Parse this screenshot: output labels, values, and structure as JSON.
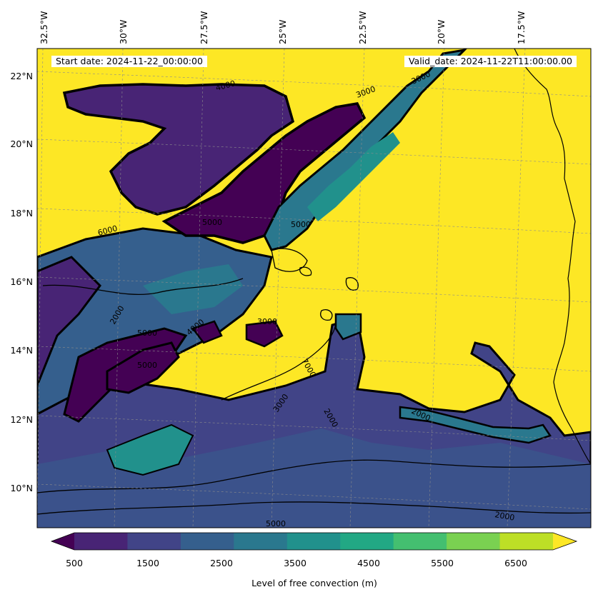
{
  "map": {
    "start_date": "Start date: 2024-11-22_00:00:00",
    "valid_date": "Valid_date: 2024-11-22T11:00:00.00",
    "lon_labels": [
      "32.5°W",
      "30°W",
      "27.5°W",
      "25°W",
      "22.5°W",
      "20°W",
      "17.5°W"
    ],
    "lat_labels": [
      "22°N",
      "20°N",
      "18°N",
      "16°N",
      "14°N",
      "12°N",
      "10°N"
    ],
    "contour_labels": [
      "4000",
      "3000",
      "3000",
      "5000",
      "2000",
      "2000",
      "2000",
      "7000",
      "5000",
      "5000",
      "5000",
      "3000",
      "4000",
      "6000",
      "3000",
      "5000",
      "2000"
    ]
  },
  "colorbar": {
    "ticks": [
      "500",
      "1500",
      "2500",
      "3500",
      "4500",
      "5500",
      "6500"
    ],
    "label": "Level of free convection (m)",
    "colors": [
      "#440154",
      "#482475",
      "#414487",
      "#355f8d",
      "#2a788e",
      "#21918c",
      "#22a884",
      "#44bf70",
      "#7ad151",
      "#bddf26",
      "#fde725"
    ]
  }
}
